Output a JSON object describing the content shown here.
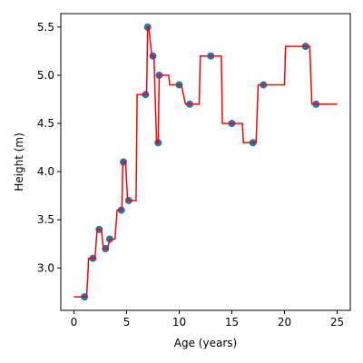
{
  "chart_data": {
    "type": "scatter",
    "xlabel": "Age (years)",
    "ylabel": "Height (m)",
    "xlim": [
      -1.25,
      26.25
    ],
    "ylim": [
      2.56,
      5.64
    ],
    "xticks": [
      0,
      5,
      10,
      15,
      20,
      25
    ],
    "xtick_labels": [
      "0",
      "5",
      "10",
      "15",
      "20",
      "25"
    ],
    "yticks": [
      3.0,
      3.5,
      4.0,
      4.5,
      5.0,
      5.5
    ],
    "ytick_labels": [
      "3.0",
      "3.5",
      "4.0",
      "4.5",
      "5.0",
      "5.5"
    ],
    "grid": false,
    "scatter": {
      "color": "#1f77b4",
      "x": [
        1.0,
        1.8,
        2.4,
        3.0,
        3.4,
        4.5,
        4.7,
        5.2,
        6.8,
        7.0,
        7.5,
        8.0,
        8.1,
        10.0,
        11.0,
        13.0,
        15.0,
        17.0,
        18.0,
        22.0,
        23.0
      ],
      "y": [
        2.7,
        3.1,
        3.4,
        3.2,
        3.3,
        3.6,
        4.1,
        3.7,
        4.8,
        5.5,
        5.2,
        4.3,
        5.0,
        4.9,
        4.7,
        5.2,
        4.5,
        4.3,
        4.9,
        5.3,
        4.7
      ]
    },
    "step_line": {
      "color": "#ff0000",
      "x": [
        0,
        1.2,
        1.4,
        2.0,
        2.2,
        2.6,
        2.8,
        3.2,
        3.4,
        3.9,
        4.1,
        4.55,
        4.65,
        4.9,
        5.1,
        5.9,
        6.0,
        6.9,
        7.0,
        7.1,
        7.4,
        7.6,
        7.85,
        8.0,
        8.1,
        8.2,
        9.0,
        9.1,
        9.8,
        10.2,
        10.6,
        11.0,
        11.9,
        12.0,
        14.0,
        14.1,
        16.0,
        16.1,
        17.3,
        17.5,
        17.7,
        18.0,
        20.0,
        20.1,
        22.4,
        22.6,
        22.8,
        25.0
      ],
      "y": [
        2.7,
        2.7,
        3.1,
        3.1,
        3.4,
        3.4,
        3.2,
        3.2,
        3.3,
        3.3,
        3.6,
        3.6,
        4.1,
        4.1,
        3.7,
        3.7,
        4.8,
        4.8,
        5.5,
        5.5,
        5.2,
        5.2,
        4.3,
        4.3,
        5.0,
        5.0,
        5.0,
        4.9,
        4.9,
        4.9,
        4.7,
        4.7,
        4.7,
        5.2,
        5.2,
        4.5,
        4.5,
        4.3,
        4.3,
        4.9,
        4.9,
        4.9,
        4.9,
        5.3,
        5.3,
        4.7,
        4.7,
        4.7
      ]
    }
  }
}
